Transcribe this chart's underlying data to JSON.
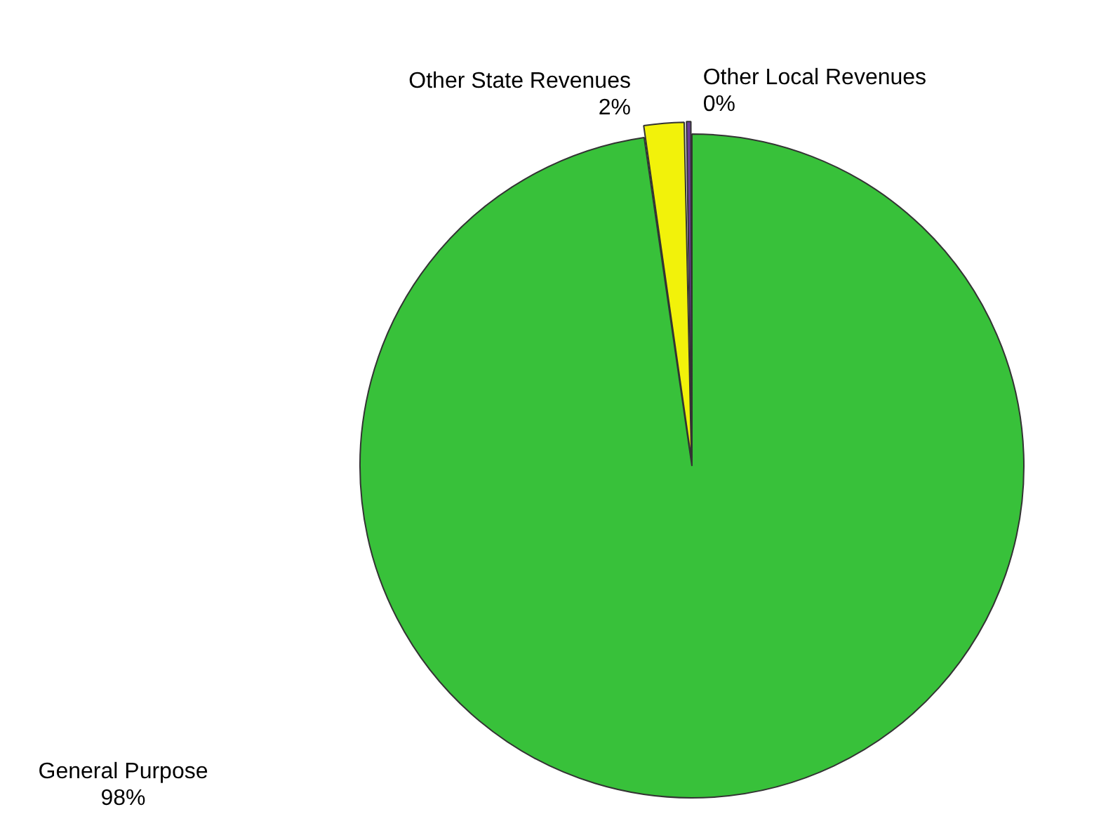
{
  "chart_data": {
    "type": "pie",
    "categories": [
      "General Purpose",
      "Other State Revenues",
      "Other Local Revenues"
    ],
    "values": [
      97.7,
      2.0,
      0.3
    ],
    "value_labels": [
      "98%",
      "2%",
      "0%"
    ],
    "colors": [
      "#38c13a",
      "#f2f20a",
      "#6a3d9a"
    ]
  }
}
